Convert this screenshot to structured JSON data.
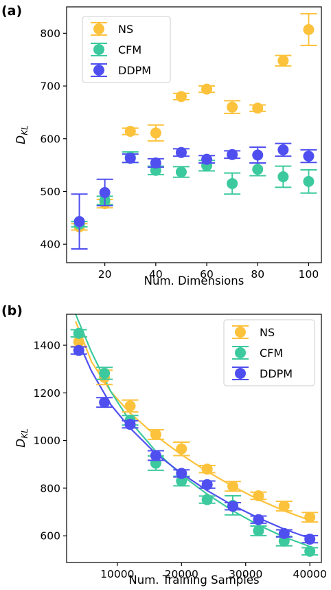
{
  "chart_data": [
    {
      "type": "scatter",
      "panel_label": "(a)",
      "title": "",
      "xlabel": "Num. Dimensions",
      "ylabel": "D_KL",
      "ylabel_main": "D",
      "ylabel_sub": "KL",
      "xlim": [
        5,
        105
      ],
      "ylim": [
        365,
        850
      ],
      "xticks": [
        20,
        40,
        60,
        80,
        100
      ],
      "yticks": [
        400,
        500,
        600,
        700,
        800
      ],
      "legend_position": "upper-left",
      "grid": false,
      "series": [
        {
          "name": "NS",
          "color": "#fcc23c",
          "x": [
            10,
            20,
            30,
            40,
            50,
            60,
            70,
            80,
            90,
            100
          ],
          "y": [
            433,
            477,
            614,
            611,
            680,
            694,
            660,
            658,
            748,
            807
          ],
          "err": [
            6,
            8,
            6,
            15,
            6,
            6,
            12,
            6,
            10,
            30
          ]
        },
        {
          "name": "CFM",
          "color": "#3cc99d",
          "x": [
            10,
            20,
            30,
            40,
            50,
            60,
            70,
            80,
            90,
            100
          ],
          "y": [
            438,
            483,
            565,
            540,
            537,
            549,
            515,
            542,
            528,
            519
          ],
          "err": [
            5,
            8,
            10,
            8,
            10,
            10,
            20,
            12,
            20,
            22
          ]
        },
        {
          "name": "DDPM",
          "color": "#4f4ff0",
          "x": [
            10,
            20,
            30,
            40,
            50,
            60,
            70,
            80,
            90,
            100
          ],
          "y": [
            443,
            498,
            563,
            554,
            574,
            561,
            570,
            569,
            579,
            567
          ],
          "err": [
            52,
            25,
            8,
            8,
            7,
            7,
            7,
            15,
            12,
            12
          ]
        }
      ]
    },
    {
      "type": "scatter",
      "panel_label": "(b)",
      "title": "",
      "xlabel": "Num. Training Samples",
      "ylabel": "D_KL",
      "ylabel_main": "D",
      "ylabel_sub": "KL",
      "xlim": [
        2100,
        41800
      ],
      "ylim": [
        488,
        1530
      ],
      "xticks": [
        10000,
        20000,
        30000,
        40000
      ],
      "yticks": [
        600,
        800,
        1000,
        1200,
        1400
      ],
      "legend_position": "upper-right",
      "grid": false,
      "series": [
        {
          "name": "NS",
          "color": "#fcc23c",
          "x": [
            4000,
            8000,
            12000,
            16000,
            20000,
            24000,
            28000,
            32000,
            36000,
            40000
          ],
          "y": [
            1415,
            1265,
            1145,
            1025,
            965,
            880,
            808,
            768,
            725,
            678
          ],
          "err": [
            20,
            30,
            25,
            20,
            28,
            15,
            20,
            15,
            20,
            20
          ],
          "fit": [
            [
              3500,
              1500
            ],
            [
              6000,
              1330
            ],
            [
              9000,
              1205
            ],
            [
              12000,
              1115
            ],
            [
              16000,
              1020
            ],
            [
              20000,
              940
            ],
            [
              24000,
              870
            ],
            [
              28000,
              808
            ],
            [
              32000,
              752
            ],
            [
              36000,
              705
            ],
            [
              40500,
              660
            ]
          ]
        },
        {
          "name": "CFM",
          "color": "#3cc99d",
          "x": [
            4000,
            8000,
            12000,
            16000,
            20000,
            24000,
            28000,
            32000,
            36000,
            40000
          ],
          "y": [
            1450,
            1282,
            1085,
            905,
            830,
            752,
            728,
            621,
            578,
            535
          ],
          "err": [
            15,
            25,
            20,
            30,
            20,
            15,
            40,
            20,
            20,
            15
          ],
          "fit": [
            [
              3500,
              1530
            ],
            [
              6000,
              1370
            ],
            [
              9000,
              1205
            ],
            [
              12000,
              1080
            ],
            [
              16000,
              955
            ],
            [
              20000,
              855
            ],
            [
              24000,
              775
            ],
            [
              28000,
              705
            ],
            [
              32000,
              645
            ],
            [
              36000,
              595
            ],
            [
              40500,
              550
            ]
          ]
        },
        {
          "name": "DDPM",
          "color": "#4f4ff0",
          "x": [
            4000,
            8000,
            12000,
            16000,
            20000,
            24000,
            28000,
            32000,
            36000,
            40000
          ],
          "y": [
            1378,
            1160,
            1068,
            937,
            862,
            815,
            724,
            668,
            610,
            586
          ],
          "err": [
            15,
            20,
            15,
            20,
            15,
            15,
            15,
            15,
            15,
            15
          ],
          "fit": [
            [
              3500,
              1440
            ],
            [
              6000,
              1290
            ],
            [
              9000,
              1150
            ],
            [
              12000,
              1052
            ],
            [
              16000,
              945
            ],
            [
              20000,
              862
            ],
            [
              24000,
              790
            ],
            [
              28000,
              728
            ],
            [
              32000,
              675
            ],
            [
              36000,
              628
            ],
            [
              40500,
              585
            ]
          ]
        }
      ]
    }
  ]
}
